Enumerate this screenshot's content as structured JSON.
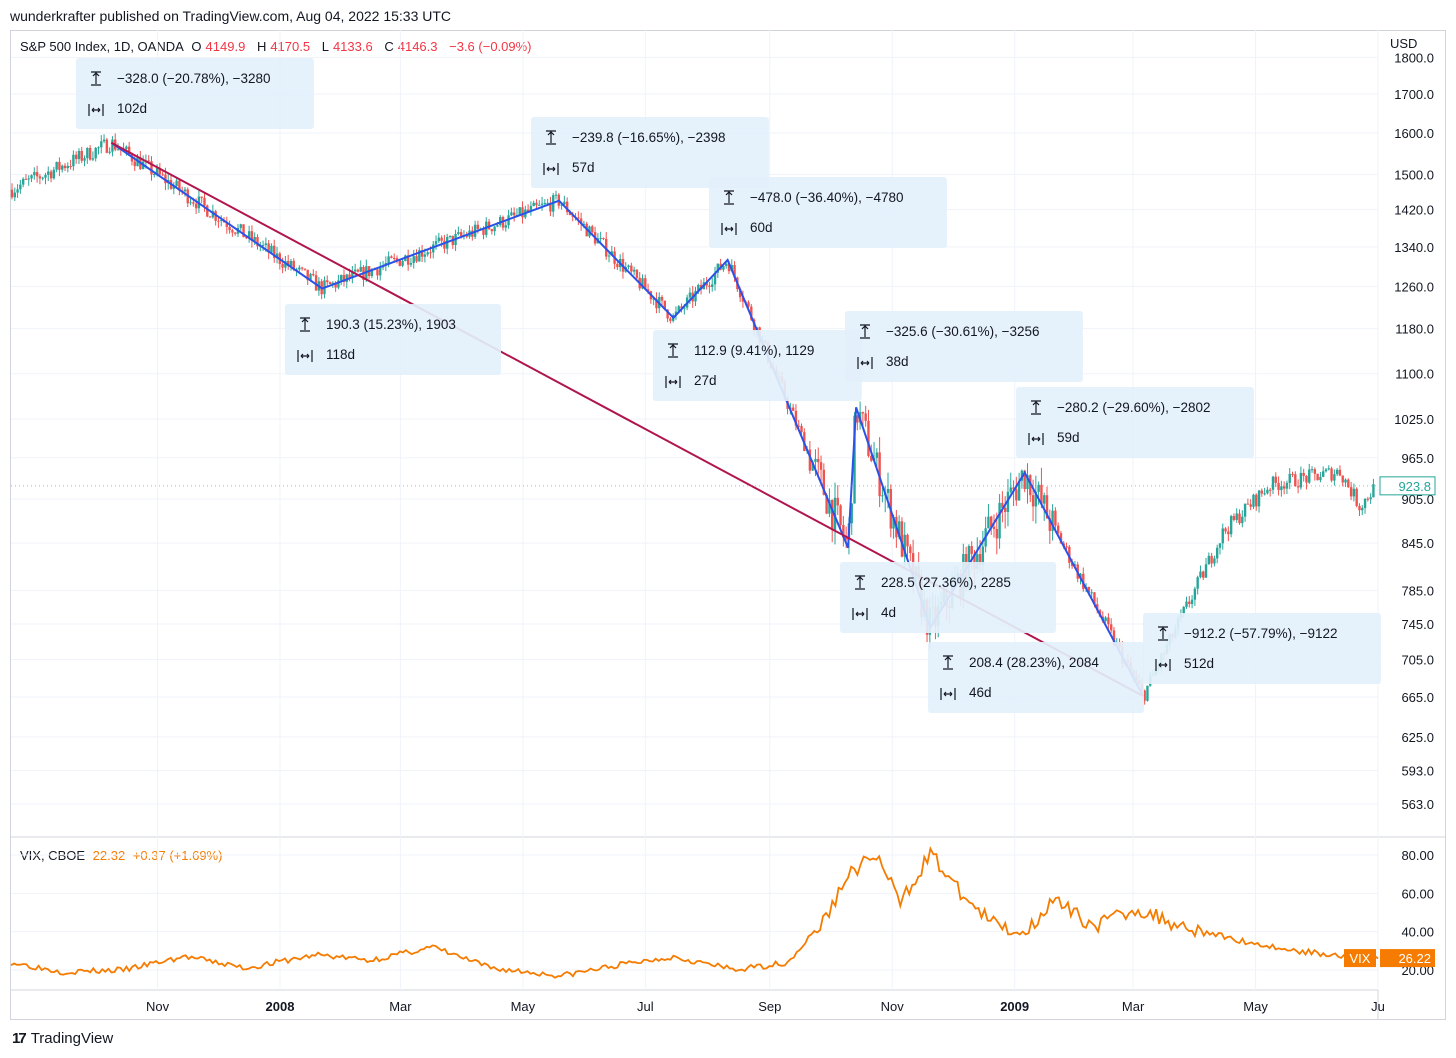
{
  "header": {
    "published": "wunderkrafter published on TradingView.com, Aug 04, 2022 15:33 UTC"
  },
  "main_legend": {
    "symbol": "S&P 500 Index, 1D, OANDA",
    "o_label": "O",
    "o_value": "4149.9",
    "h_label": "H",
    "h_value": "4170.5",
    "l_label": "L",
    "l_value": "4133.6",
    "c_label": "C",
    "c_value": "4146.3",
    "change": "−3.6 (−0.09%)"
  },
  "currency": "USD",
  "vix_legend": {
    "symbol": "VIX, CBOE",
    "value": "22.32",
    "change": "+0.37 (+1.69%)"
  },
  "colors": {
    "up": "#26a69a",
    "down": "#ef5350",
    "zigzag": "#2a52e8",
    "trendline": "#b0154e",
    "vix": "#f57c00",
    "box_bg": "#e3f0fb"
  },
  "chart_data": [
    {
      "type": "line",
      "title": "S&P 500 Index, 1D, OANDA",
      "x_ticks": [
        "Nov",
        "2008",
        "Mar",
        "May",
        "Jul",
        "Sep",
        "Nov",
        "2009",
        "Mar",
        "May",
        "Ju"
      ],
      "y_ticks": [
        "1800.0",
        "1700.0",
        "1600.0",
        "1500.0",
        "1420.0",
        "1340.0",
        "1260.0",
        "1180.0",
        "1100.0",
        "1025.0",
        "965.0",
        "905.0",
        "845.0",
        "785.0",
        "745.0",
        "705.0",
        "665.0",
        "625.0",
        "593.0",
        "563.0"
      ],
      "last_price_label": "923.8",
      "zigzag": [
        {
          "date": "2007-10-09",
          "price": 1576
        },
        {
          "date": "2008-01-22",
          "price": 1256
        },
        {
          "date": "2008-05-19",
          "price": 1440
        },
        {
          "date": "2008-07-15",
          "price": 1200
        },
        {
          "date": "2008-08-11",
          "price": 1313
        },
        {
          "date": "2008-10-10",
          "price": 839
        },
        {
          "date": "2008-10-14",
          "price": 1044
        },
        {
          "date": "2008-11-20",
          "price": 741
        },
        {
          "date": "2009-01-06",
          "price": 943
        },
        {
          "date": "2009-03-06",
          "price": 666
        }
      ],
      "trendline": [
        {
          "date": "2007-10-09",
          "price": 1576
        },
        {
          "date": "2009-03-06",
          "price": 666
        }
      ],
      "measurements": [
        {
          "change": "−328.0 (−20.78%), −3280",
          "duration": "102d"
        },
        {
          "change": "190.3 (15.23%), 1903",
          "duration": "118d"
        },
        {
          "change": "−239.8 (−16.65%), −2398",
          "duration": "57d"
        },
        {
          "change": "−478.0 (−36.40%), −4780",
          "duration": "60d"
        },
        {
          "change": "112.9 (9.41%), 1129",
          "duration": "27d"
        },
        {
          "change": "−325.6 (−30.61%), −3256",
          "duration": "38d"
        },
        {
          "change": "−280.2 (−29.60%), −2802",
          "duration": "59d"
        },
        {
          "change": "228.5 (27.36%), 2285",
          "duration": "4d"
        },
        {
          "change": "208.4 (28.23%), 2084",
          "duration": "46d"
        },
        {
          "change": "−912.2 (−57.79%), −9122",
          "duration": "512d"
        }
      ]
    },
    {
      "type": "line",
      "title": "VIX, CBOE",
      "y_ticks": [
        "80.00",
        "60.00",
        "40.00",
        "20.00"
      ],
      "last_value_label": "26.22",
      "series_label": "VIX",
      "series": [
        {
          "name": "VIX",
          "points": [
            {
              "date": "2007-08-20",
              "value": 24
            },
            {
              "date": "2007-09-15",
              "value": 19
            },
            {
              "date": "2007-10-15",
              "value": 20
            },
            {
              "date": "2007-11-15",
              "value": 27
            },
            {
              "date": "2007-12-15",
              "value": 21
            },
            {
              "date": "2008-01-20",
              "value": 28
            },
            {
              "date": "2008-02-15",
              "value": 25
            },
            {
              "date": "2008-03-17",
              "value": 32
            },
            {
              "date": "2008-04-15",
              "value": 21
            },
            {
              "date": "2008-05-20",
              "value": 17
            },
            {
              "date": "2008-06-20",
              "value": 23
            },
            {
              "date": "2008-07-15",
              "value": 27
            },
            {
              "date": "2008-08-15",
              "value": 20
            },
            {
              "date": "2008-09-10",
              "value": 24
            },
            {
              "date": "2008-09-29",
              "value": 47
            },
            {
              "date": "2008-10-10",
              "value": 70
            },
            {
              "date": "2008-10-24",
              "value": 80
            },
            {
              "date": "2008-11-05",
              "value": 55
            },
            {
              "date": "2008-11-20",
              "value": 81
            },
            {
              "date": "2008-12-05",
              "value": 60
            },
            {
              "date": "2008-12-20",
              "value": 45
            },
            {
              "date": "2009-01-05",
              "value": 39
            },
            {
              "date": "2009-01-20",
              "value": 56
            },
            {
              "date": "2009-02-10",
              "value": 43
            },
            {
              "date": "2009-03-02",
              "value": 52
            },
            {
              "date": "2009-03-20",
              "value": 45
            },
            {
              "date": "2009-04-20",
              "value": 36
            },
            {
              "date": "2009-05-20",
              "value": 30
            },
            {
              "date": "2009-06-20",
              "value": 27
            },
            {
              "date": "2009-07-01",
              "value": 26
            }
          ]
        }
      ]
    }
  ],
  "footer": {
    "brand": "TradingView"
  }
}
